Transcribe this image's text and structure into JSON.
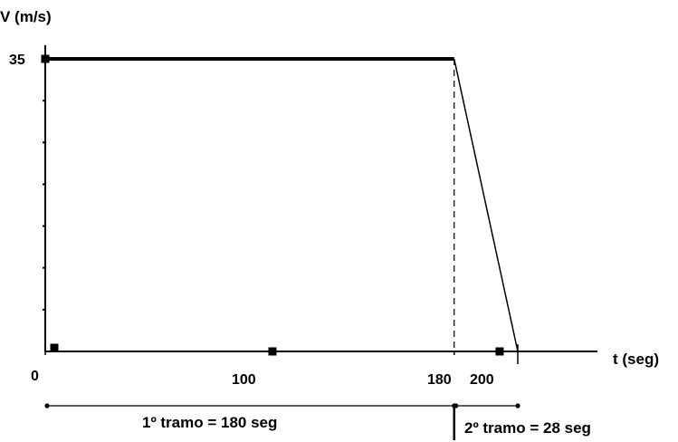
{
  "chart_data": {
    "type": "line",
    "ylabel": "V (m/s)",
    "xlabel": "t (seg)",
    "y_tick_label": "35",
    "x_tick_labels": [
      "0",
      "100",
      "180",
      "200"
    ],
    "x_ticks": [
      0,
      100,
      180,
      200
    ],
    "y_ticks": [
      5,
      10,
      15,
      20,
      25,
      30,
      35
    ],
    "series": [
      {
        "x": [
          0,
          180,
          208
        ],
        "y": [
          35,
          35,
          0
        ]
      }
    ],
    "marker_points": [
      {
        "x": 0,
        "y": 35
      },
      {
        "x": 0,
        "y": 0
      },
      {
        "x": 100,
        "y": 0
      },
      {
        "x": 200,
        "y": 0
      }
    ],
    "xlim": [
      0,
      208
    ],
    "ylim": [
      0,
      35
    ],
    "dashed_reference_x": 180,
    "intervals": [
      {
        "label": "1º tramo = 180 seg",
        "start": 0,
        "end": 180
      },
      {
        "label": "2º tramo = 28 seg",
        "start": 180,
        "end": 208
      }
    ]
  }
}
